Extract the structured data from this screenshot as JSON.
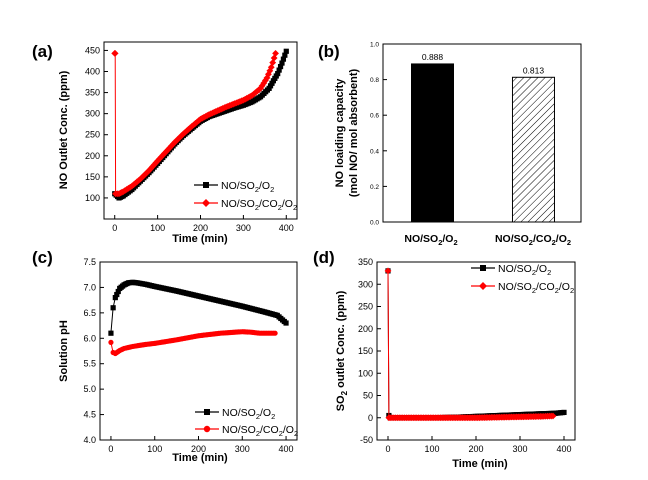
{
  "colors": {
    "series1": "#000000",
    "series2": "#ff0000"
  },
  "chart_data": [
    {
      "panel_label": "(a)",
      "type": "line",
      "xlabel": "Time (min)",
      "ylabel": "NO Outlet Conc. (ppm)",
      "xlim": [
        -25,
        425
      ],
      "ylim": [
        50,
        470
      ],
      "xticks": [
        "0",
        "100",
        "200",
        "300",
        "400"
      ],
      "xtick_values": [
        0,
        100,
        200,
        300,
        400
      ],
      "yticks": [
        "100",
        "150",
        "200",
        "250",
        "300",
        "350",
        "400",
        "450"
      ],
      "ytick_values": [
        100,
        150,
        200,
        250,
        300,
        350,
        400,
        450
      ],
      "legend": {
        "position": "bottom-right"
      },
      "series": [
        {
          "name": "NO/SO2/O2",
          "name_main": "NO/SO",
          "name_sub": [
            "2",
            "2"
          ],
          "name_mid": [
            "/O"
          ],
          "color": "#000000",
          "marker": "square",
          "x": [
            0,
            10,
            20,
            40,
            60,
            80,
            100,
            120,
            140,
            160,
            180,
            200,
            220,
            240,
            260,
            280,
            300,
            320,
            340,
            360,
            370,
            380,
            390,
            400
          ],
          "y": [
            110,
            100,
            105,
            120,
            140,
            160,
            182,
            205,
            228,
            248,
            265,
            282,
            293,
            300,
            307,
            314,
            320,
            328,
            340,
            360,
            378,
            395,
            420,
            448
          ]
        },
        {
          "name": "NO/SO2/CO2/O2",
          "name_main": "NO/SO",
          "name_sub": [
            "2",
            "2",
            "2"
          ],
          "name_mid": [
            "/CO",
            "/O"
          ],
          "color": "#ff0000",
          "marker": "diamond",
          "x": [
            0,
            1,
            2,
            10,
            20,
            40,
            60,
            80,
            100,
            120,
            140,
            160,
            180,
            200,
            220,
            240,
            260,
            280,
            300,
            320,
            340,
            355,
            365,
            375
          ],
          "y": [
            443,
            443,
            110,
            110,
            115,
            128,
            145,
            165,
            188,
            210,
            232,
            252,
            270,
            287,
            298,
            307,
            316,
            324,
            332,
            343,
            360,
            385,
            410,
            443
          ]
        }
      ]
    },
    {
      "panel_label": "(b)",
      "type": "bar",
      "ylabel": "NO loaiding capacity (mol NO/ mol absorbent)",
      "ylabel_line1": "NO loaiding capacity",
      "ylabel_line2": "(mol NO/ mol absorbent)",
      "ylim": [
        0,
        1.0
      ],
      "yticks": [
        "0.0",
        "0.2",
        "0.4",
        "0.6",
        "0.8",
        "1.0"
      ],
      "ytick_values": [
        0.0,
        0.2,
        0.4,
        0.6,
        0.8,
        1.0
      ],
      "categories": [
        "NO/SO2/O2",
        "NO/SO2/CO2/O2"
      ],
      "values": [
        0.888,
        0.813
      ],
      "value_labels": [
        "0.888",
        "0.813"
      ],
      "fills": [
        "solid-black",
        "hatched"
      ]
    },
    {
      "panel_label": "(c)",
      "type": "line",
      "xlabel": "Time (min)",
      "ylabel": "Solution pH",
      "xlim": [
        -25,
        425
      ],
      "ylim": [
        4.0,
        7.5
      ],
      "xticks": [
        "0",
        "100",
        "200",
        "300",
        "400"
      ],
      "xtick_values": [
        0,
        100,
        200,
        300,
        400
      ],
      "yticks": [
        "4.0",
        "4.5",
        "5.0",
        "5.5",
        "6.0",
        "6.5",
        "7.0",
        "7.5"
      ],
      "ytick_values": [
        4.0,
        4.5,
        5.0,
        5.5,
        6.0,
        6.5,
        7.0,
        7.5
      ],
      "legend": {
        "position": "bottom-right"
      },
      "series": [
        {
          "name": "NO/SO2/O2",
          "name_main": "NO/SO",
          "name_sub": [
            "2",
            "2"
          ],
          "name_mid": [
            "/O"
          ],
          "color": "#000000",
          "marker": "square",
          "x": [
            0,
            5,
            10,
            20,
            30,
            40,
            50,
            60,
            80,
            100,
            150,
            200,
            250,
            300,
            350,
            380,
            400
          ],
          "y": [
            6.1,
            6.6,
            6.8,
            6.98,
            7.05,
            7.09,
            7.1,
            7.09,
            7.06,
            7.02,
            6.93,
            6.83,
            6.73,
            6.63,
            6.52,
            6.45,
            6.3
          ]
        },
        {
          "name": "NO/SO2/CO2/O2",
          "name_main": "NO/SO",
          "name_sub": [
            "2",
            "2",
            "2"
          ],
          "name_mid": [
            "/CO",
            "/O"
          ],
          "color": "#ff0000",
          "marker": "circle",
          "x": [
            0,
            5,
            10,
            20,
            30,
            50,
            80,
            100,
            150,
            200,
            250,
            300,
            320,
            340,
            375
          ],
          "y": [
            5.92,
            5.72,
            5.7,
            5.76,
            5.8,
            5.84,
            5.88,
            5.9,
            5.97,
            6.05,
            6.1,
            6.13,
            6.12,
            6.1,
            6.1
          ]
        }
      ]
    },
    {
      "panel_label": "(d)",
      "type": "line",
      "xlabel": "Time (min)",
      "ylabel": "SO2 outlet Conc. (ppm)",
      "ylabel_main": "SO",
      "ylabel_sub": "2",
      "ylabel_rest": " outlet Conc. (ppm)",
      "xlim": [
        -25,
        425
      ],
      "ylim": [
        -50,
        350
      ],
      "xticks": [
        "0",
        "100",
        "200",
        "300",
        "400"
      ],
      "xtick_values": [
        0,
        100,
        200,
        300,
        400
      ],
      "yticks": [
        "-50",
        "0",
        "50",
        "100",
        "150",
        "200",
        "250",
        "300",
        "350"
      ],
      "ytick_values": [
        -50,
        0,
        50,
        100,
        150,
        200,
        250,
        300,
        350
      ],
      "legend": {
        "position": "top-right"
      },
      "series": [
        {
          "name": "NO/SO2/O2",
          "name_main": "NO/SO",
          "name_sub": [
            "2",
            "2"
          ],
          "name_mid": [
            "/O"
          ],
          "color": "#000000",
          "marker": "square",
          "x": [
            0,
            2,
            5,
            50,
            100,
            150,
            200,
            250,
            300,
            350,
            380,
            400
          ],
          "y": [
            330,
            5,
            0,
            0,
            0,
            1,
            3,
            5,
            7,
            9,
            10,
            12
          ]
        },
        {
          "name": "NO/SO2/CO2/O2",
          "name_main": "NO/SO",
          "name_sub": [
            "2",
            "2",
            "2"
          ],
          "name_mid": [
            "/CO",
            "/O"
          ],
          "color": "#ff0000",
          "marker": "diamond",
          "x": [
            0,
            2,
            5,
            50,
            100,
            150,
            200,
            250,
            300,
            350,
            375
          ],
          "y": [
            330,
            0,
            0,
            0,
            0,
            0,
            0,
            1,
            2,
            3,
            4
          ]
        }
      ]
    }
  ]
}
